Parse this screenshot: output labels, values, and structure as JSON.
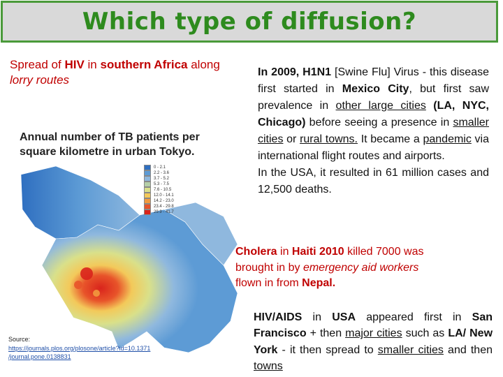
{
  "title": "Which type of diffusion?",
  "hiv": {
    "p1": "Spread of ",
    "hiv": "HIV",
    "p2": " in ",
    "region": "southern Africa",
    "p3": " along ",
    "routes": "lorry routes"
  },
  "tb": {
    "line1": "Annual number of TB patients per",
    "line2": "square kilometre in urban Tokyo."
  },
  "legend": [
    "0 - 2.1",
    "2.2 - 3.6",
    "3.7 - 5.2",
    "5.3 - 7.5",
    "7.6 - 10.5",
    "12.0 - 14.1",
    "14.2 - 23.0",
    "23.4 - 29.8",
    "29.9 - 41.7"
  ],
  "colors": {
    "title_green": "#2e8b1e",
    "red": "#c00000",
    "legend": [
      "#2f6fc0",
      "#5d9bd5",
      "#8fb8de",
      "#b5cfa7",
      "#d9e08a",
      "#f3c95a",
      "#f29a3e",
      "#e8542a",
      "#d9241c"
    ]
  },
  "source": {
    "label": "Source:",
    "url1": "https://journals.plos.org/plosone/article?id=10.1371",
    "url2": "/journal.pone.0138831"
  },
  "h1n1": {
    "a1": "In 2009, H1N1",
    "a2": " [Swine Flu] Virus - this disease first started in ",
    "mexico": "Mexico City",
    "a3": ", but first saw prevalence in ",
    "other": "other large cities",
    "a4": " (LA, NYC, Chicago)",
    "a5": " before seeing a presence in ",
    "smaller": "smaller cities",
    "a6": " or ",
    "rural": "rural towns.",
    "a7": " It became a ",
    "pandemic": "pandemic",
    "a8": " via international flight routes and airports.",
    "usa": "In the USA, it resulted in 61 million cases and 12,500 deaths."
  },
  "cholera": {
    "c1": "Cholera",
    "c2": " in ",
    "haiti": "Haiti 2010",
    "c3": " killed 7000 was brought in by ",
    "aid": "emergency aid workers",
    "c4": " flown in from ",
    "nepal": "Nepal."
  },
  "hivusa": {
    "b1": "HIV/AIDS",
    "b2": " in ",
    "usa": "USA",
    "b3": " appeared first in ",
    "sf": "San Francisco",
    "b4": " + then ",
    "major": "major cities",
    "b5": " such as ",
    "la": "LA/ New York",
    "b6": " - it then spread to ",
    "smaller": "smaller cities",
    "b7": " and then ",
    "towns": "towns"
  }
}
